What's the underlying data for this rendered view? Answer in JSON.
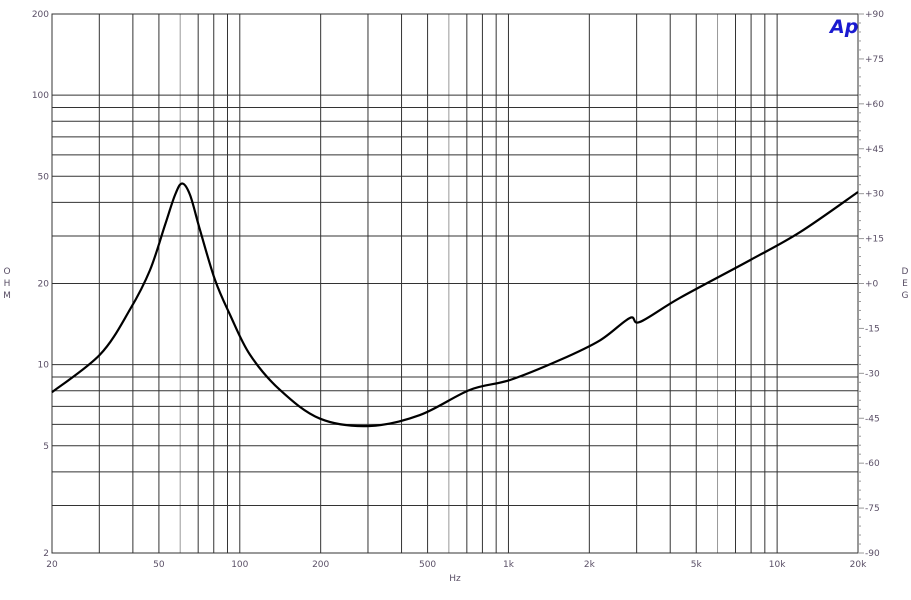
{
  "chart_data": {
    "type": "line",
    "xlabel": "Hz",
    "ylabel": "OHM",
    "y2label": "DEG",
    "xscale": "log",
    "yscale": "log",
    "xlim": [
      20,
      20000
    ],
    "ylim": [
      2,
      200
    ],
    "y2lim": [
      -90,
      90
    ],
    "grid": true,
    "x_ticks": [
      20,
      50,
      100,
      200,
      500,
      1000,
      2000,
      5000,
      10000,
      20000
    ],
    "x_tick_labels": [
      "20",
      "50",
      "100",
      "200",
      "500",
      "1k",
      "2k",
      "5k",
      "10k",
      "20k"
    ],
    "y_ticks": [
      200,
      100,
      50,
      20,
      10,
      5,
      2
    ],
    "y_tick_labels": [
      "200",
      "100",
      "50",
      "20",
      "10",
      "5",
      "2"
    ],
    "y2_tick_labels": [
      "+90",
      "+75",
      "+60",
      "+45",
      "+30",
      "+15",
      "+0",
      "-15",
      "-30",
      "-45",
      "-60",
      "-75",
      "-90"
    ],
    "logo": "Ap",
    "colors": {
      "curve": "#000000",
      "grid": "#333333",
      "logo": "#1a1ad0",
      "labels": "#5a4f66"
    },
    "series": [
      {
        "x": [
          20,
          30.2,
          39,
          46.3,
          52.7,
          57.4,
          61,
          65.3,
          71.1,
          80.9,
          92,
          109,
          141,
          199,
          305,
          468,
          719,
          1014,
          1553,
          2190,
          2830,
          3085,
          4350,
          7920,
          12160,
          20000
        ],
        "y": [
          7.9,
          10.9,
          16,
          22.4,
          33,
          42.6,
          47,
          42.6,
          31.6,
          20.6,
          15.3,
          10.9,
          8.06,
          6.3,
          5.92,
          6.5,
          8.06,
          8.77,
          10.4,
          12.3,
          14.9,
          14.4,
          17.7,
          24.4,
          31,
          43.7
        ]
      }
    ]
  }
}
